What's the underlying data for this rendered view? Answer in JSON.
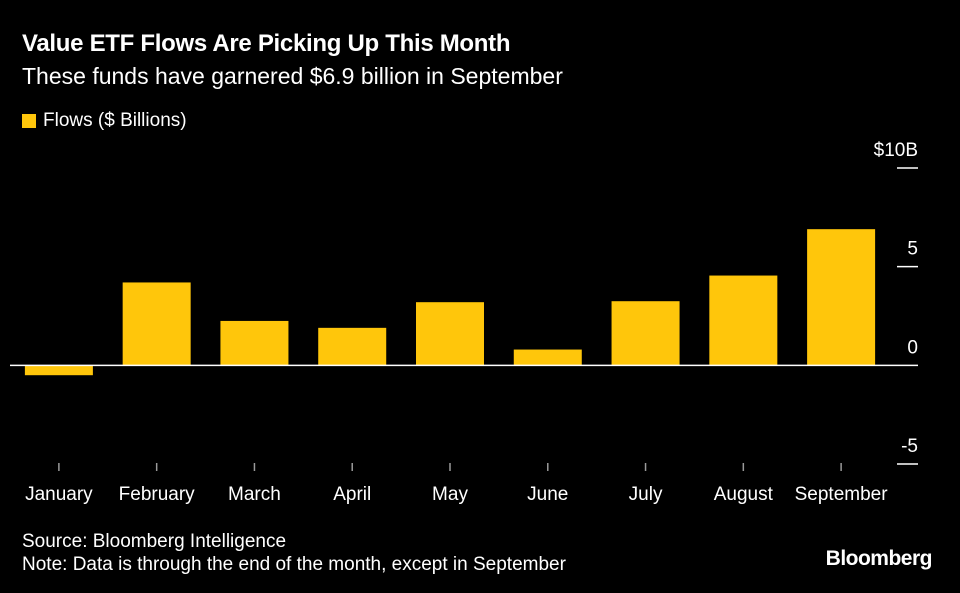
{
  "header": {
    "title": "Value ETF Flows Are Picking Up This Month",
    "subtitle": "These funds have garnered $6.9 billion in September"
  },
  "legend": {
    "label": "Flows ($ Billions)"
  },
  "footer": {
    "source": "Source: Bloomberg Intelligence",
    "note": "Note: Data is through the end of the month, except in September",
    "brand": "Bloomberg"
  },
  "colors": {
    "bar": "#ffc60b",
    "background": "#000000",
    "text": "#ffffff",
    "axis": "#ffffff",
    "tick": "#9a9a9a"
  },
  "chart_data": {
    "type": "bar",
    "title": "Value ETF Flows Are Picking Up This Month",
    "subtitle": "These funds have garnered $6.9 billion in September",
    "categories": [
      "January",
      "February",
      "March",
      "April",
      "May",
      "June",
      "July",
      "August",
      "September"
    ],
    "series": [
      {
        "name": "Flows ($ Billions)",
        "values": [
          -0.5,
          4.2,
          2.25,
          1.9,
          3.2,
          0.8,
          3.25,
          4.55,
          6.9
        ]
      }
    ],
    "ylim": [
      -5,
      10
    ],
    "yticks": [
      10,
      5,
      0,
      -5
    ],
    "ytick_labels": [
      "$10B",
      "5",
      "0",
      "-5"
    ],
    "y_axis_position": "right",
    "xlabel": "",
    "ylabel": "",
    "grid": false,
    "legend_position": "top-left"
  }
}
